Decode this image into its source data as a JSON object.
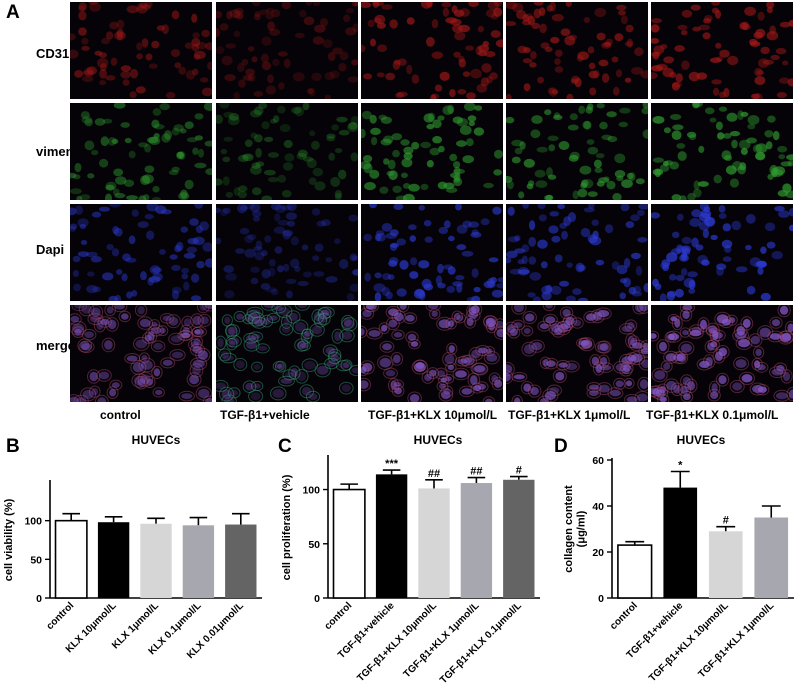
{
  "panel_a": {
    "letter": "A",
    "rows": [
      "CD31",
      "vimentin",
      "Dapi",
      "merge"
    ],
    "columns": [
      "control",
      "TGF-β1+vehicle",
      "TGF-β1+KLX 10μmol/L",
      "TGF-β1+KLX 1μmol/L",
      "TGF-β1+KLX 0.1μmol/L"
    ],
    "colors": {
      "CD31": "#a01818",
      "vimentin": "#2f9a2f",
      "Dapi": "#2d3bd6",
      "merge": "#8a5bd0"
    }
  },
  "chart_data": [
    {
      "panel": "B",
      "type": "bar",
      "title": "HUVECs",
      "ylabel": "cell viability (%)",
      "xlabel": "",
      "categories": [
        "control",
        "KLX 10μmol/L",
        "KLX 1μmol/L",
        "KLX 0.1μmol/L",
        "KLX 0.01μmol/L"
      ],
      "values": [
        100,
        98,
        96,
        94,
        95
      ],
      "errors": [
        9,
        7,
        7,
        10,
        14
      ],
      "annotations": [
        "",
        "",
        "",
        "",
        ""
      ],
      "colors": [
        "#ffffff",
        "#000000",
        "#d6d6d6",
        "#a7a7b0",
        "#646464"
      ],
      "ylim": [
        0,
        150
      ],
      "yticks": [
        0,
        50,
        100
      ],
      "grid": false
    },
    {
      "panel": "C",
      "type": "bar",
      "title": "HUVECs",
      "ylabel": "cell proliferation (%)",
      "xlabel": "",
      "categories": [
        "control",
        "TGF-β1+vehicle",
        "TGF-β1+KLX 10μmol/L",
        "TGF-β1+KLX 1μmol/L",
        "TGF-β1+KLX 0.1μmol/L"
      ],
      "values": [
        100,
        114,
        101,
        106,
        109
      ],
      "errors": [
        5,
        4,
        8,
        5,
        3
      ],
      "annotations": [
        "",
        "***",
        "##",
        "##",
        "#"
      ],
      "colors": [
        "#ffffff",
        "#000000",
        "#d6d6d6",
        "#a7a7b0",
        "#646464"
      ],
      "ylim": [
        0,
        130
      ],
      "yticks": [
        0,
        50,
        100
      ],
      "grid": false
    },
    {
      "panel": "D",
      "type": "bar",
      "title": "HUVECs",
      "ylabel": "collagen content\n(μg/ml)",
      "xlabel": "",
      "categories": [
        "control",
        "TGF-β1+vehicle",
        "TGF-β1+KLX 10μmol/L",
        "TGF-β1+KLX 1μmol/L"
      ],
      "values": [
        23,
        48,
        29,
        35
      ],
      "errors": [
        1.5,
        7,
        2,
        5
      ],
      "annotations": [
        "",
        "*",
        "#",
        ""
      ],
      "colors": [
        "#ffffff",
        "#000000",
        "#d6d6d6",
        "#a7a7b0"
      ],
      "ylim": [
        0,
        60
      ],
      "yticks": [
        0,
        20,
        40,
        60
      ],
      "grid": false
    }
  ]
}
